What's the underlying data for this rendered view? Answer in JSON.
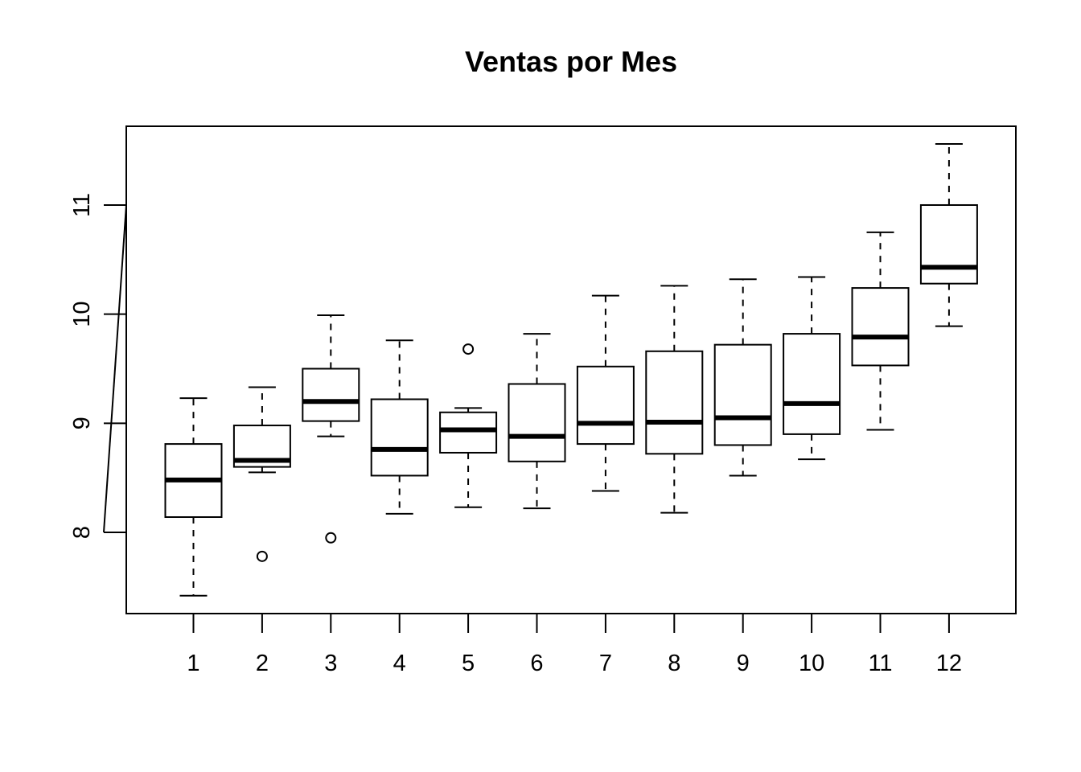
{
  "chart_data": {
    "type": "boxplot",
    "title": "Ventas por Mes",
    "xlabel": "",
    "ylabel": "",
    "ylim": [
      7.35,
      11.6
    ],
    "yticks": [
      8,
      9,
      10,
      11
    ],
    "categories": [
      "1",
      "2",
      "3",
      "4",
      "5",
      "6",
      "7",
      "8",
      "9",
      "10",
      "11",
      "12"
    ],
    "boxes": [
      {
        "min": 7.42,
        "q1": 8.14,
        "median": 8.48,
        "q3": 8.81,
        "max": 9.23,
        "outliers": []
      },
      {
        "min": 8.55,
        "q1": 8.6,
        "median": 8.66,
        "q3": 8.98,
        "max": 9.33,
        "outliers": [
          7.78
        ]
      },
      {
        "min": 8.88,
        "q1": 9.02,
        "median": 9.2,
        "q3": 9.5,
        "max": 9.99,
        "outliers": [
          7.95
        ]
      },
      {
        "min": 8.17,
        "q1": 8.52,
        "median": 8.76,
        "q3": 9.22,
        "max": 9.76,
        "outliers": []
      },
      {
        "min": 8.23,
        "q1": 8.73,
        "median": 8.94,
        "q3": 9.1,
        "max": 9.14,
        "outliers": [
          9.68
        ]
      },
      {
        "min": 8.22,
        "q1": 8.65,
        "median": 8.88,
        "q3": 9.36,
        "max": 9.82,
        "outliers": []
      },
      {
        "min": 8.38,
        "q1": 8.81,
        "median": 9.0,
        "q3": 9.52,
        "max": 10.17,
        "outliers": []
      },
      {
        "min": 8.18,
        "q1": 8.72,
        "median": 9.01,
        "q3": 9.66,
        "max": 10.26,
        "outliers": []
      },
      {
        "min": 8.52,
        "q1": 8.8,
        "median": 9.05,
        "q3": 9.72,
        "max": 10.32,
        "outliers": []
      },
      {
        "min": 8.67,
        "q1": 8.9,
        "median": 9.18,
        "q3": 9.82,
        "max": 10.34,
        "outliers": []
      },
      {
        "min": 8.94,
        "q1": 9.53,
        "median": 9.79,
        "q3": 10.24,
        "max": 10.75,
        "outliers": []
      },
      {
        "min": 9.89,
        "q1": 10.28,
        "median": 10.43,
        "q3": 11.0,
        "max": 11.56,
        "outliers": []
      }
    ],
    "grid": false,
    "legend": "none",
    "colors": {
      "line": "#000000",
      "box_fill": "#ffffff"
    }
  }
}
